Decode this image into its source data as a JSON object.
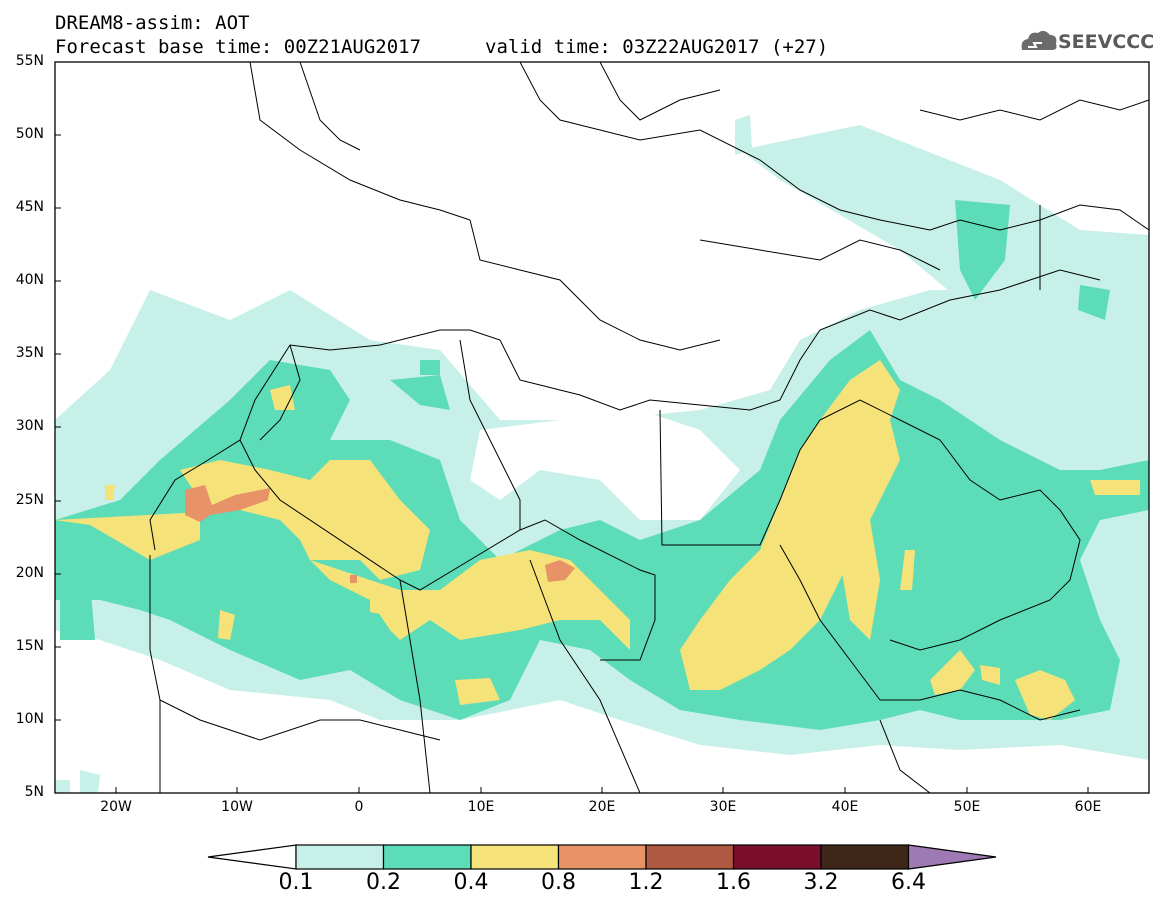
{
  "header": {
    "line1": "DREAM8-assim: AOT",
    "line2": "Forecast base time: 00Z21AUG2017",
    "line3": "valid time: 03Z22AUG2017 (+27)"
  },
  "logo": {
    "text": "SEEVCCC",
    "icon": "cloud-icon"
  },
  "axes": {
    "lat_labels": [
      "55N",
      "50N",
      "45N",
      "40N",
      "35N",
      "30N",
      "25N",
      "20N",
      "15N",
      "10N",
      "5N"
    ],
    "lon_labels": [
      "20W",
      "10W",
      "0",
      "10E",
      "20E",
      "30E",
      "40E",
      "50E",
      "60E"
    ]
  },
  "colorbar": {
    "labels": [
      "0.1",
      "0.2",
      "0.4",
      "0.8",
      "1.2",
      "1.6",
      "3.2",
      "6.4"
    ],
    "colors": [
      "#ffffff",
      "#c7f0e8",
      "#5ddcb8",
      "#f5e278",
      "#e89268",
      "#b15a42",
      "#7a0e2c",
      "#3e2718",
      "#9e7ab4"
    ]
  },
  "colors": {
    "level1": "#c7f0e8",
    "level2": "#5ddcb8",
    "level3": "#f5e278",
    "level4": "#e89268",
    "border": "#000000"
  }
}
